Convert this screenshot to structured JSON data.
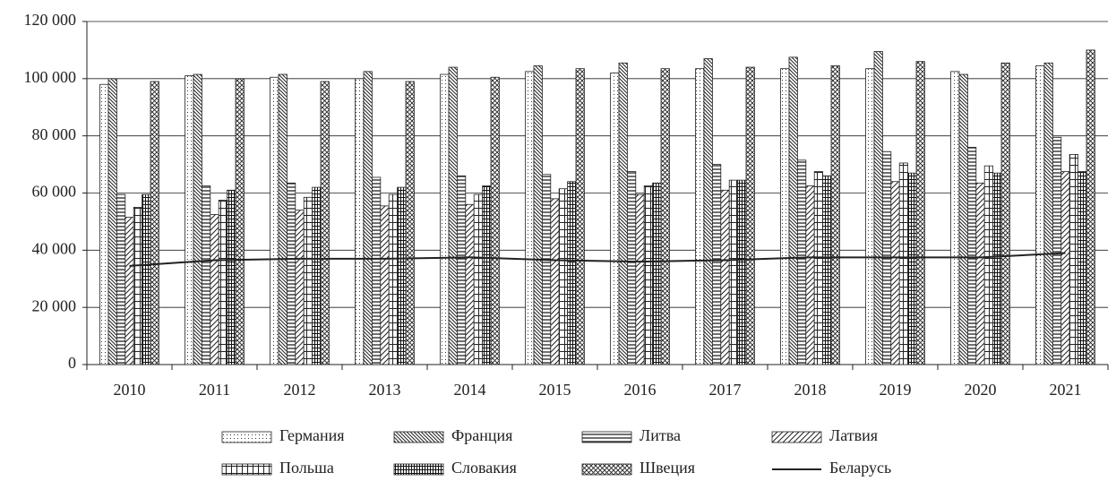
{
  "chart_data": {
    "type": "bar",
    "categories": [
      "2010",
      "2011",
      "2012",
      "2013",
      "2014",
      "2015",
      "2016",
      "2017",
      "2018",
      "2019",
      "2020",
      "2021"
    ],
    "series": [
      {
        "name": "Германия",
        "pattern": "dots",
        "values": [
          98000,
          101000,
          100500,
          100000,
          101500,
          102500,
          102000,
          103500,
          103500,
          103500,
          102500,
          104500
        ]
      },
      {
        "name": "Франция",
        "pattern": "diag-down",
        "values": [
          100000,
          101500,
          101500,
          102500,
          104000,
          104500,
          105500,
          107000,
          107500,
          109500,
          101500,
          105500
        ]
      },
      {
        "name": "Литва",
        "pattern": "hlines",
        "values": [
          59500,
          62500,
          63500,
          65500,
          66000,
          66500,
          67500,
          70000,
          71500,
          74500,
          76000,
          79500
        ]
      },
      {
        "name": "Латвия",
        "pattern": "diag-up",
        "values": [
          51500,
          52500,
          54000,
          55500,
          56000,
          58000,
          59500,
          61000,
          62500,
          64000,
          63500,
          67500
        ]
      },
      {
        "name": "Польша",
        "pattern": "grid",
        "values": [
          55000,
          57500,
          58500,
          59500,
          59500,
          61500,
          62500,
          64500,
          67500,
          70500,
          69500,
          73500
        ]
      },
      {
        "name": "Словакия",
        "pattern": "dense-grid",
        "values": [
          59500,
          61000,
          62000,
          62000,
          62500,
          64000,
          63500,
          64500,
          66000,
          67000,
          67000,
          67500
        ]
      },
      {
        "name": "Швеция",
        "pattern": "cross",
        "values": [
          99000,
          100000,
          99000,
          99000,
          100500,
          103500,
          103500,
          104000,
          104500,
          106000,
          105500,
          110000
        ]
      },
      {
        "name": "Беларусь",
        "type": "line",
        "color": "#222222",
        "values": [
          34500,
          36500,
          37000,
          37000,
          37500,
          36500,
          36000,
          36500,
          37500,
          37500,
          37500,
          39000
        ]
      }
    ],
    "ylim": [
      0,
      120000
    ],
    "yticks": [
      0,
      {
        "value": 20000,
        "label": "20 000"
      },
      {
        "value": 40000,
        "label": "40 000"
      },
      {
        "value": 60000,
        "label": "60 000"
      },
      {
        "value": 80000,
        "label": "80 000"
      },
      {
        "value": 100000,
        "label": "100 000"
      },
      {
        "value": 120000,
        "label": "120 000"
      }
    ],
    "grid": true,
    "legend": "bottom"
  }
}
